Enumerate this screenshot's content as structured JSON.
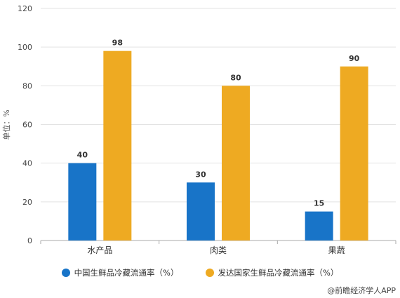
{
  "colors": {
    "series1": "#1874C8",
    "series2": "#EEAA22",
    "grid": "#E3E3E3",
    "axis": "#AAAAAA"
  },
  "chart_data": {
    "type": "bar",
    "categories": [
      "水产品",
      "肉类",
      "果蔬"
    ],
    "series": [
      {
        "name": "中国生鲜品冷藏流通率（%）",
        "values": [
          40,
          30,
          15
        ]
      },
      {
        "name": "发达国家生鲜品冷藏流通率（%）",
        "values": [
          98,
          80,
          90
        ]
      }
    ],
    "ylabel": "单位：%",
    "ylim": [
      0,
      120
    ],
    "yticks": [
      0,
      20,
      40,
      60,
      80,
      100,
      120
    ],
    "grid": true,
    "legend": "bottom"
  },
  "source": "@前瞻经济学人APP"
}
